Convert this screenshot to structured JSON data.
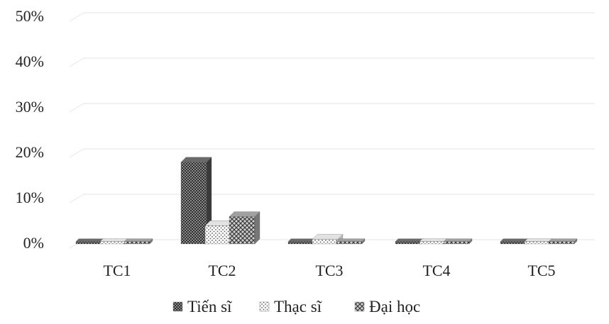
{
  "chart_data": {
    "type": "bar",
    "categories": [
      "TC1",
      "TC2",
      "TC3",
      "TC4",
      "TC5"
    ],
    "series": [
      {
        "name": "Tiến sĩ",
        "values": [
          0,
          18,
          0,
          0,
          0
        ]
      },
      {
        "name": "Thạc sĩ",
        "values": [
          0,
          4,
          1,
          0,
          0
        ]
      },
      {
        "name": "Đại học",
        "values": [
          0,
          6,
          0,
          0,
          0
        ]
      }
    ],
    "yticks": [
      "0%",
      "10%",
      "20%",
      "30%",
      "40%",
      "50%"
    ],
    "ylim": [
      0,
      50
    ],
    "y_unit": "%",
    "grid": true,
    "legend": "bottom-center",
    "colors": {
      "tien_si": "#3f3f3f",
      "thac_si": "#9a9a9a",
      "dai_hoc": "#6a6a6a",
      "grid": "#e6e6e6",
      "text": "#222222"
    }
  }
}
